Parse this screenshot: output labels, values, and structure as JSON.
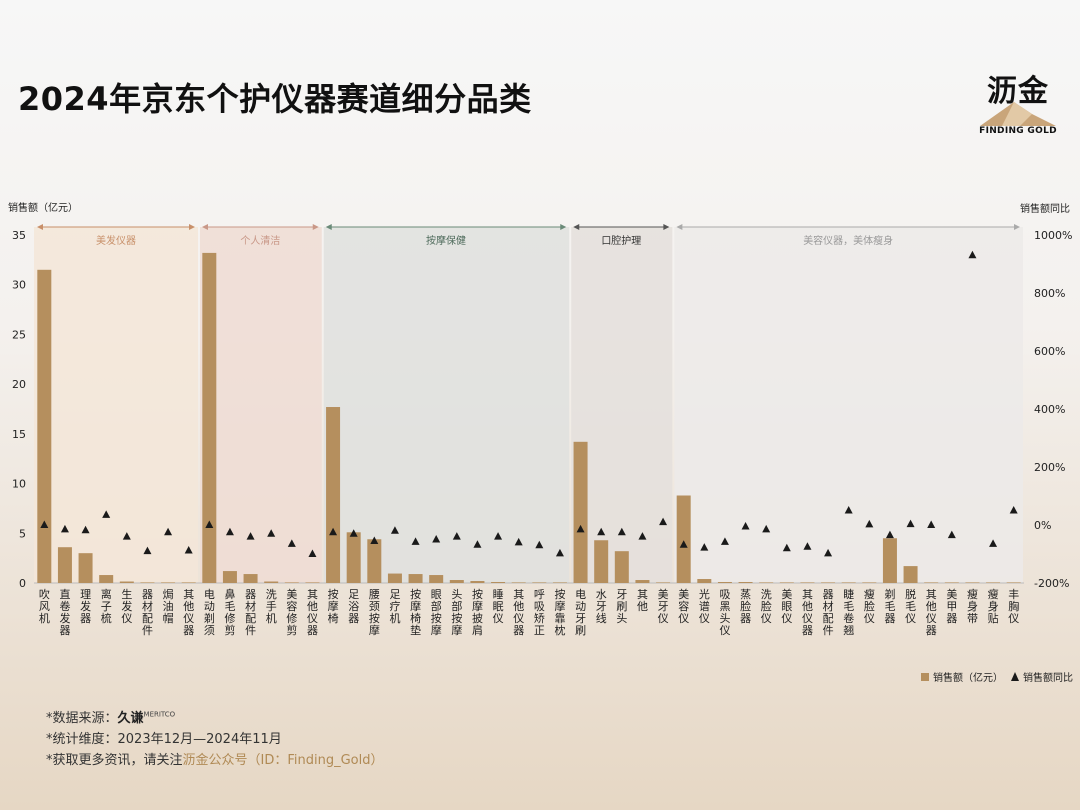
{
  "title": "2024年京东个护仪器赛道细分品类",
  "logo": {
    "name": "沥金",
    "subtitle": "FINDING GOLD"
  },
  "footer": {
    "source_prefix": "*数据来源：",
    "source_brand": "久谦",
    "source_brand_small": "MERITCO",
    "period": "*统计维度：2023年12月—2024年11月",
    "follow_prefix": "*获取更多资讯，请关注",
    "follow_highlight": "沥金公众号（ID：Finding_Gold）"
  },
  "colors": {
    "bar": "#b58f5e",
    "marker": "#1a1a1a",
    "group_hair": "#f3e6d8",
    "group_clean": "#eedcd4",
    "group_massage": "#dfe1de",
    "group_oral": "#e4dfdc",
    "group_beauty": "#eceae9"
  },
  "chart_data": {
    "type": "bar",
    "ylabel": "销售额（亿元）",
    "y2label": "销售额同比",
    "ylim": [
      0,
      35
    ],
    "yticks": [
      0,
      5,
      10,
      15,
      20,
      25,
      30,
      35
    ],
    "y2lim": [
      -200,
      1000
    ],
    "y2ticks": [
      "-200%",
      "0%",
      "200%",
      "400%",
      "600%",
      "800%",
      "1000%"
    ],
    "legend_position": "bottom-right",
    "groups": [
      {
        "name": "美发仪器",
        "start": 0,
        "end": 7,
        "color_key": "group_hair",
        "text_color": "#c8906a",
        "arrow_color": "#c8906a"
      },
      {
        "name": "个人清洁",
        "start": 8,
        "end": 13,
        "color_key": "group_clean",
        "text_color": "#c99888",
        "arrow_color": "#c99888"
      },
      {
        "name": "按摩保健",
        "start": 14,
        "end": 25,
        "color_key": "group_massage",
        "text_color": "#4d6a5a",
        "arrow_color": "#6a8a78"
      },
      {
        "name": "口腔护理",
        "start": 26,
        "end": 30,
        "color_key": "group_oral",
        "text_color": "#333333",
        "arrow_color": "#555555"
      },
      {
        "name": "美容仪器，美体瘦身",
        "start": 31,
        "end": 47,
        "color_key": "group_beauty",
        "text_color": "#999999",
        "arrow_color": "#aaaaaa"
      }
    ],
    "categories": [
      "吹风机",
      "直卷发器",
      "理发器",
      "离子梳",
      "生发仪",
      "器材配件",
      "焗油帽",
      "其他仪器",
      "电动剃须",
      "鼻毛修剪",
      "器材配件",
      "洗手机",
      "美容修剪",
      "其他仪器",
      "按摩椅",
      "足浴器",
      "腰颈按摩",
      "足疗机",
      "按摩椅垫",
      "眼部按摩",
      "头部按摩",
      "按摩披肩",
      "睡眠仪",
      "其他仪器",
      "呼吸矫正",
      "按摩靠枕",
      "电动牙刷",
      "水牙线",
      "牙刷头",
      "其他",
      "美牙仪",
      "美容仪",
      "光谱仪",
      "吸黑头仪",
      "蒸脸器",
      "洗脸仪",
      "美眼仪",
      "其他仪器",
      "器材配件",
      "睫毛卷翘",
      "瘦脸仪",
      "剃毛器",
      "脱毛仪",
      "其他仪器",
      "美甲器",
      "瘦身带",
      "瘦身贴",
      "丰胸仪"
    ],
    "series": [
      {
        "name": "销售额（亿元）",
        "kind": "bar",
        "values": [
          31.5,
          3.6,
          3.0,
          0.8,
          0.15,
          0.05,
          0.05,
          0.05,
          33.2,
          1.2,
          0.9,
          0.15,
          0.05,
          0.05,
          17.7,
          5.1,
          4.4,
          0.95,
          0.9,
          0.8,
          0.3,
          0.2,
          0.1,
          0.05,
          0.05,
          0.05,
          14.2,
          4.3,
          3.2,
          0.3,
          0.05,
          8.8,
          0.4,
          0.1,
          0.1,
          0.05,
          0.05,
          0.05,
          0.05,
          0.05,
          0.05,
          4.5,
          1.7,
          0.05,
          0.05,
          0.05,
          0.05,
          0.05
        ]
      },
      {
        "name": "销售额同比",
        "kind": "marker",
        "values": [
          0,
          -15,
          -18,
          35,
          -40,
          -90,
          -25,
          -88,
          0,
          -25,
          -40,
          -30,
          -65,
          -100,
          -25,
          -30,
          -55,
          -20,
          -58,
          -50,
          -40,
          -68,
          -40,
          -60,
          -70,
          -98,
          -15,
          -25,
          -25,
          -40,
          10,
          -68,
          -78,
          -58,
          -5,
          -15,
          -80,
          -75,
          -98,
          50,
          2,
          -35,
          3,
          0,
          -35,
          930,
          -65,
          50
        ]
      }
    ]
  }
}
